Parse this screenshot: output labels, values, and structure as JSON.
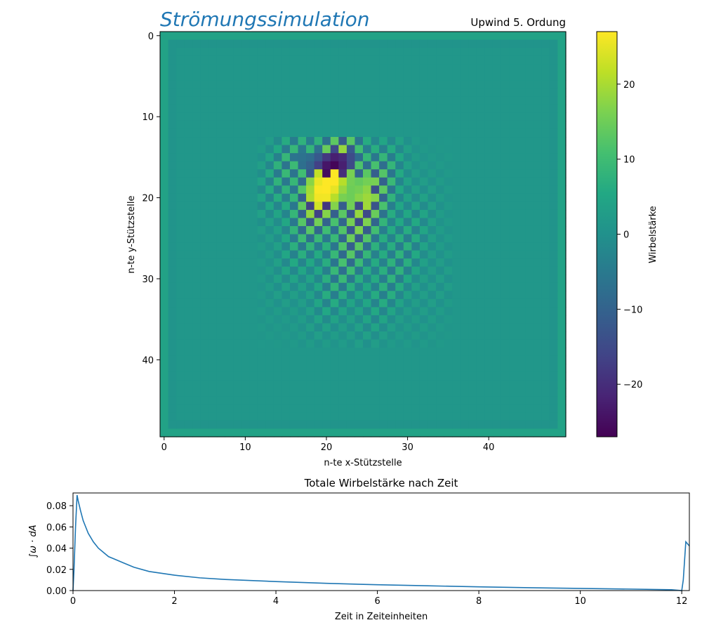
{
  "chart_data": [
    {
      "type": "heatmap",
      "title": "Strömungssimulation",
      "subtitle": "Upwind 5. Ordung",
      "xlabel": "n-te x-Stützstelle",
      "ylabel": "n-te y-Stützstelle",
      "grid_size": [
        50,
        50
      ],
      "xlim": [
        -0.5,
        49.5
      ],
      "ylim": [
        49.5,
        -0.5
      ],
      "xticks": [
        0,
        10,
        20,
        30,
        40
      ],
      "yticks": [
        0,
        10,
        20,
        30,
        40
      ],
      "colormap": "viridis",
      "field": {
        "background_value": 1.5,
        "checkerboard_region": {
          "x_range": [
            12,
            35
          ],
          "y_range": [
            13,
            38
          ]
        },
        "peak_max": 27,
        "peak_min": -27,
        "peak_center": {
          "x": 21,
          "y": 18
        }
      },
      "colorbar": {
        "label": "Wirbelstärke",
        "range": [
          -27,
          27
        ],
        "ticks": [
          -20,
          -10,
          0,
          10,
          20
        ],
        "tick_labels": [
          "−20",
          "−10",
          "0",
          "10",
          "20"
        ]
      },
      "grid": false
    },
    {
      "type": "line",
      "title": "Totale Wirbelstärke nach Zeit",
      "xlabel": "Zeit in Zeiteinheiten",
      "ylabel": "∫ω · dA",
      "xlim": [
        0,
        12.15
      ],
      "ylim": [
        0,
        0.092
      ],
      "xticks": [
        0,
        2,
        4,
        6,
        8,
        10,
        12
      ],
      "yticks": [
        0.0,
        0.02,
        0.04,
        0.06,
        0.08
      ],
      "ytick_labels": [
        "0.00",
        "0.02",
        "0.04",
        "0.06",
        "0.08"
      ],
      "color": "#1f77b4",
      "grid": false,
      "series": [
        {
          "x": [
            0,
            0.02,
            0.05,
            0.08,
            0.1,
            0.15,
            0.2,
            0.3,
            0.4,
            0.5,
            0.6,
            0.7,
            0.8,
            1.0,
            1.2,
            1.5,
            2.0,
            2.5,
            3.0,
            4.0,
            5.0,
            6.0,
            7.0,
            8.0,
            9.0,
            10.0,
            11.0,
            11.8,
            12.0,
            12.03,
            12.08,
            12.15
          ],
          "y": [
            0.0,
            0.02,
            0.06,
            0.09,
            0.085,
            0.075,
            0.066,
            0.054,
            0.046,
            0.04,
            0.036,
            0.032,
            0.03,
            0.026,
            0.022,
            0.018,
            0.0145,
            0.012,
            0.0105,
            0.0085,
            0.0068,
            0.0055,
            0.0045,
            0.0035,
            0.0027,
            0.002,
            0.0014,
            0.0008,
            0.0,
            0.01,
            0.046,
            0.042
          ]
        }
      ]
    }
  ]
}
